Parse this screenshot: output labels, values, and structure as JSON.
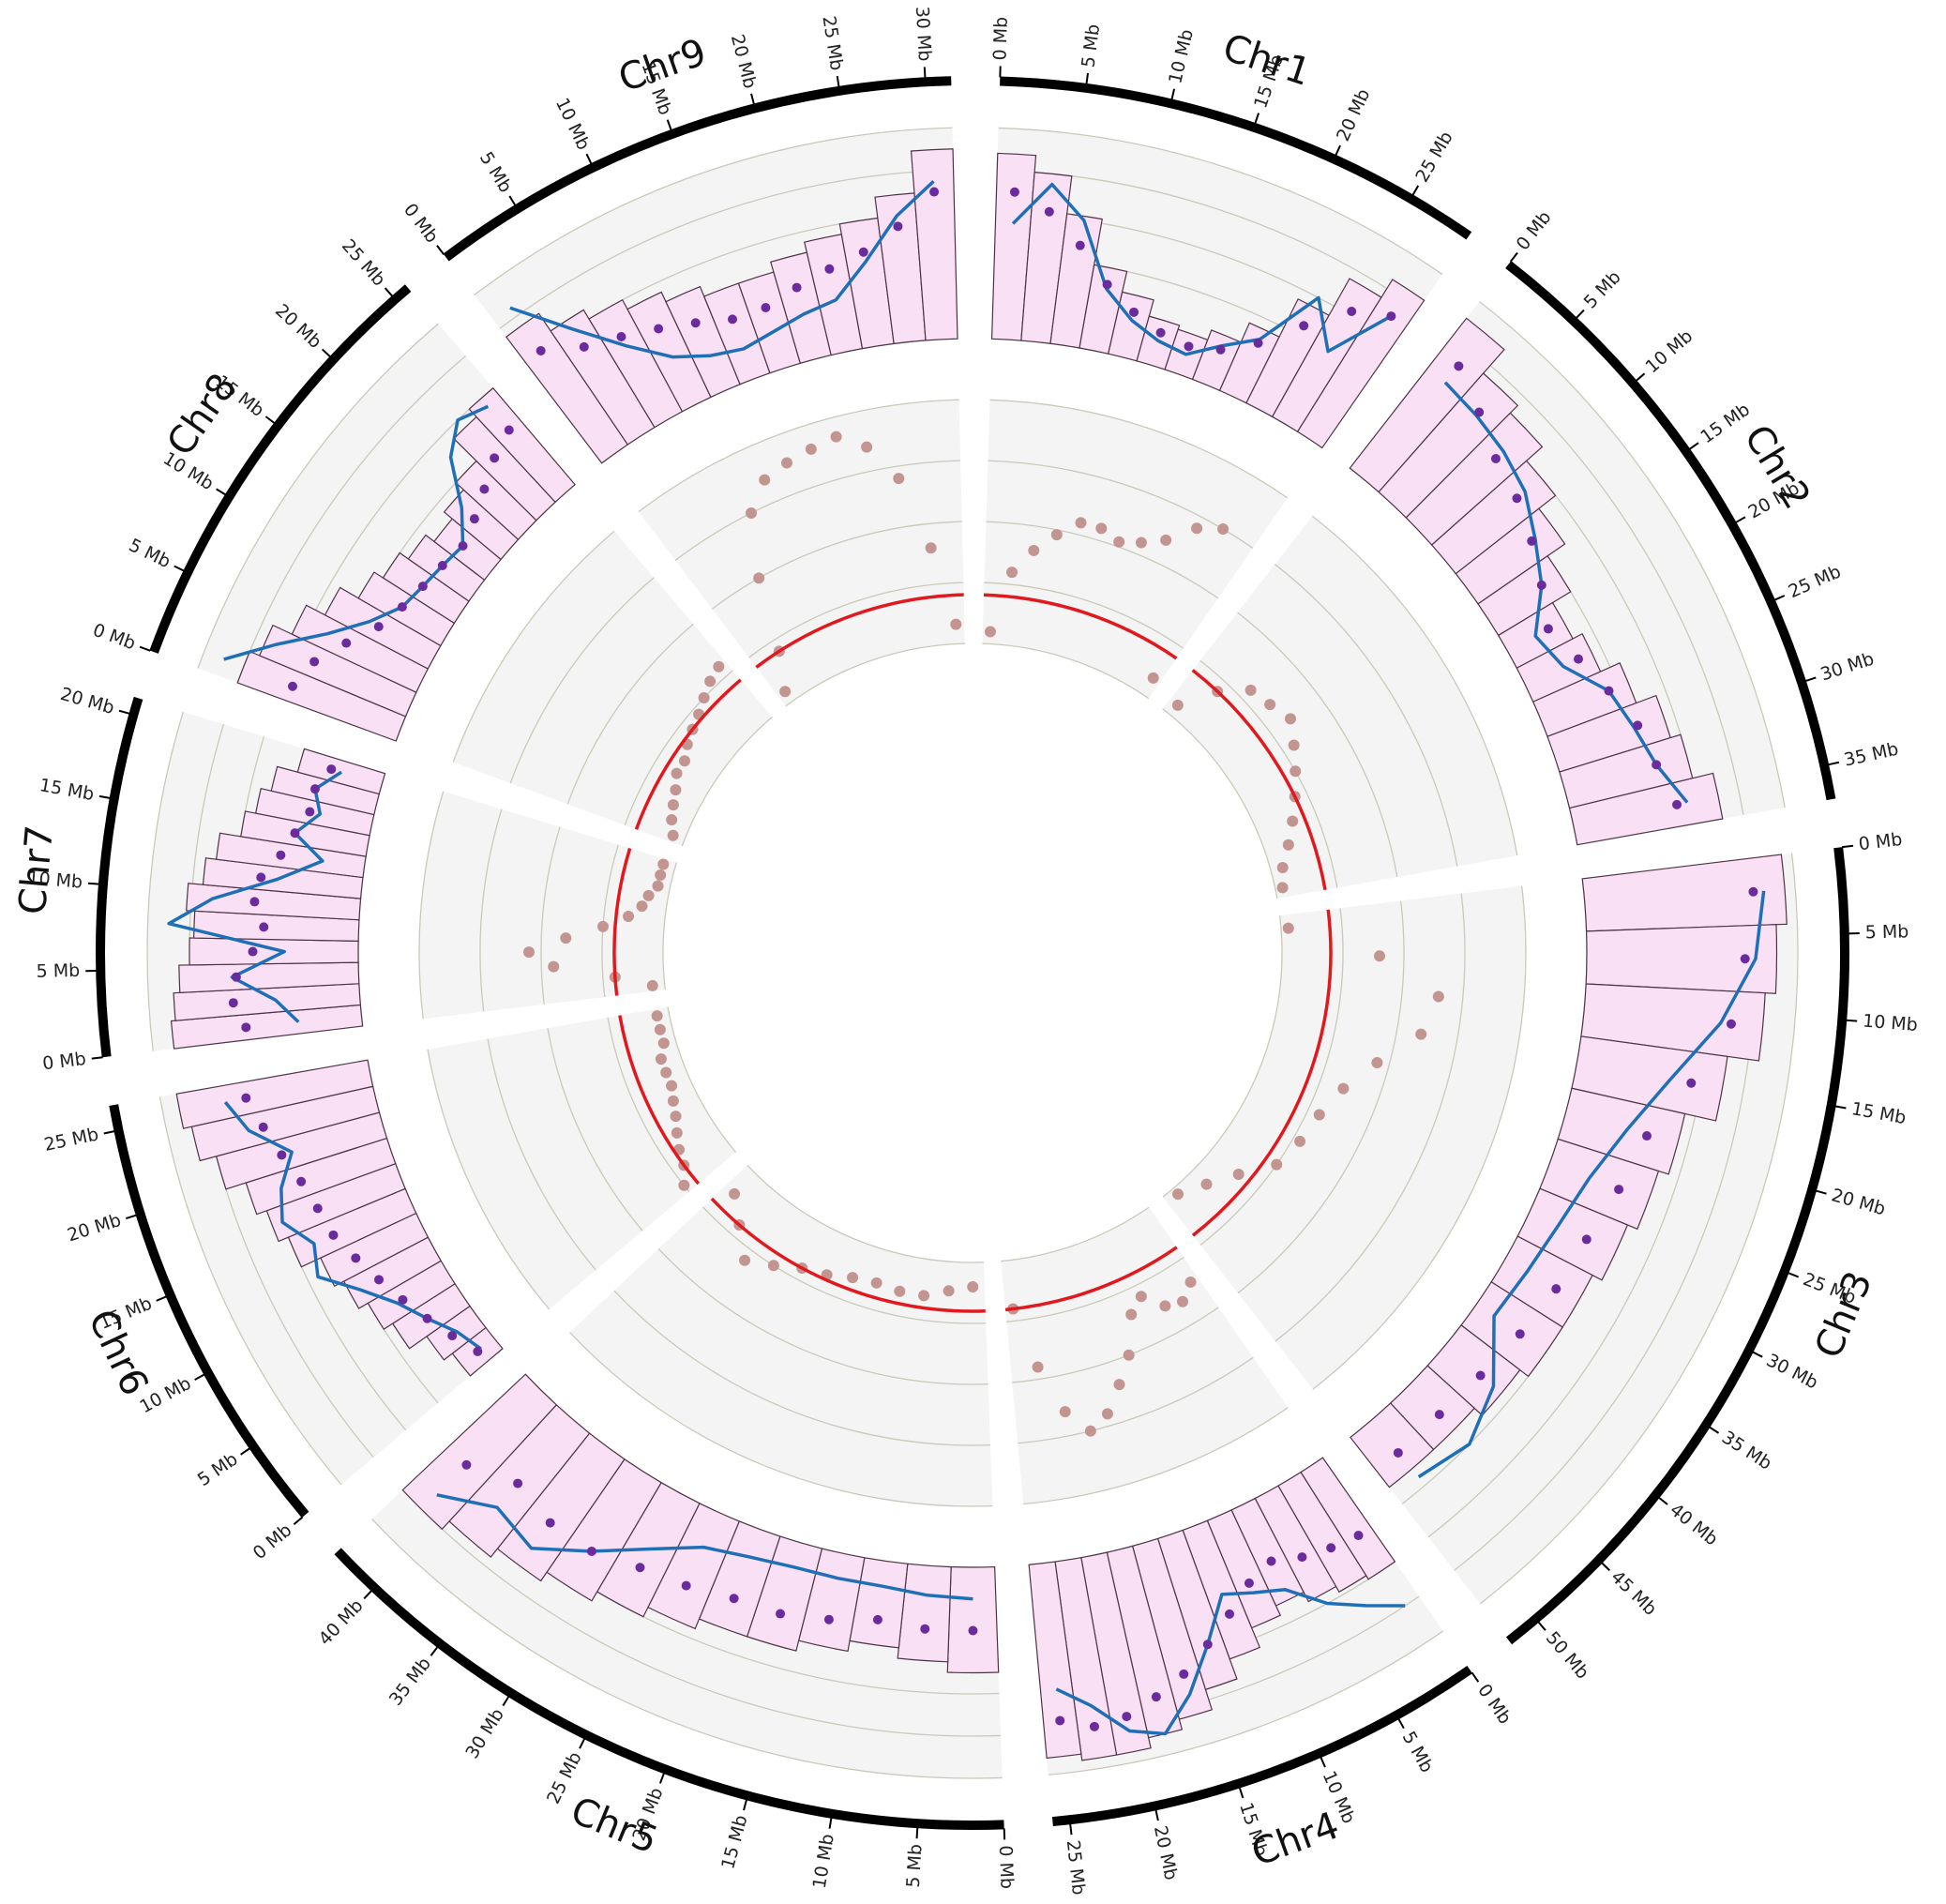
{
  "chart_data": {
    "type": "circos",
    "outer_track": {
      "rlim": [
        0,
        100
      ],
      "rticks": [
        0,
        20,
        40,
        60,
        80,
        100
      ],
      "background": "#f4f4f4",
      "grid_color": "#c9c9bb",
      "hist_color": "#f9e0f5",
      "hist_edge": "#4d3345",
      "dot_color": "#6a2b9c",
      "line_color": "#1f6fb6"
    },
    "inner_track": {
      "rlim": [
        0,
        100
      ],
      "rticks": [
        0,
        25,
        50,
        75,
        100
      ],
      "background": "#f4f4f4",
      "grid_color": "#c9c9bb",
      "scatter_color": "#c29590",
      "line_color": "#e0191e",
      "line_value": 20
    },
    "chromosomes": [
      {
        "name": "Chr1",
        "length": 29,
        "ticks": [
          {
            "value": 0,
            "label": "0 Mb"
          },
          {
            "value": 5,
            "label": "5 Mb"
          },
          {
            "value": 10,
            "label": "10 Mb"
          },
          {
            "value": 15,
            "label": "15 Mb"
          },
          {
            "value": 20,
            "label": "20 Mb"
          },
          {
            "value": 25,
            "label": "25 Mb"
          }
        ],
        "hist": [
          88,
          80,
          62,
          40,
          30,
          22,
          20,
          25,
          35,
          55,
          75,
          85
        ],
        "dots": [
          70,
          62,
          48,
          32,
          22,
          16,
          14,
          18,
          28,
          45,
          62,
          70
        ],
        "line": [
          55,
          75,
          60,
          30,
          18,
          12,
          10,
          20,
          30,
          60,
          40,
          70
        ],
        "scatter": [
          5,
          30,
          40,
          48,
          55,
          55,
          52,
          55,
          60,
          70,
          75,
          8
        ]
      },
      {
        "name": "Chr2",
        "length": 37,
        "ticks": [
          {
            "value": 0,
            "label": "0 Mb"
          },
          {
            "value": 5,
            "label": "5 Mb"
          },
          {
            "value": 10,
            "label": "10 Mb"
          },
          {
            "value": 15,
            "label": "15 Mb"
          },
          {
            "value": 20,
            "label": "20 Mb"
          },
          {
            "value": 25,
            "label": "25 Mb"
          },
          {
            "value": 30,
            "label": "30 Mb"
          },
          {
            "value": 35,
            "label": "35 Mb"
          }
        ],
        "hist": [
          90,
          75,
          70,
          60,
          50,
          40,
          30,
          35,
          45,
          55,
          60,
          70
        ],
        "dots": [
          70,
          60,
          50,
          45,
          38,
          30,
          22,
          28,
          35,
          42,
          45,
          50
        ],
        "line": [
          60,
          58,
          55,
          50,
          40,
          30,
          15,
          20,
          35,
          40,
          45,
          55
        ],
        "scatter": [
          5,
          20,
          30,
          32,
          35,
          30,
          25,
          20,
          15,
          10,
          5,
          3
        ]
      },
      {
        "name": "Chr3",
        "length": 52,
        "ticks": [
          {
            "value": 0,
            "label": "0 Mb"
          },
          {
            "value": 5,
            "label": "5 Mb"
          },
          {
            "value": 10,
            "label": "10 Mb"
          },
          {
            "value": 15,
            "label": "15 Mb"
          },
          {
            "value": 20,
            "label": "20 Mb"
          },
          {
            "value": 25,
            "label": "25 Mb"
          },
          {
            "value": 30,
            "label": "30 Mb"
          },
          {
            "value": 35,
            "label": "35 Mb"
          },
          {
            "value": 40,
            "label": "40 Mb"
          },
          {
            "value": 45,
            "label": "45 Mb"
          },
          {
            "value": 50,
            "label": "50 Mb"
          }
        ],
        "hist": [
          95,
          90,
          85,
          70,
          55,
          50,
          45,
          40,
          40,
          35,
          30,
          30
        ],
        "dots": [
          80,
          75,
          70,
          55,
          40,
          35,
          30,
          28,
          25,
          22,
          20,
          20
        ],
        "line": [
          85,
          80,
          65,
          45,
          30,
          20,
          15,
          12,
          10,
          30,
          40,
          35
        ],
        "scatter": [
          3,
          40,
          65,
          60,
          45,
          35,
          30,
          28,
          25,
          15,
          8,
          3
        ]
      },
      {
        "name": "Chr4",
        "length": 26,
        "ticks": [
          {
            "value": 0,
            "label": "0 Mb"
          },
          {
            "value": 5,
            "label": "5 Mb"
          },
          {
            "value": 10,
            "label": "10 Mb"
          },
          {
            "value": 15,
            "label": "15 Mb"
          },
          {
            "value": 20,
            "label": "20 Mb"
          },
          {
            "value": 25,
            "label": "25 Mb"
          }
        ],
        "hist": [
          60,
          58,
          55,
          50,
          55,
          65,
          75,
          85,
          90,
          95,
          95,
          92
        ],
        "dots": [
          40,
          38,
          35,
          30,
          35,
          45,
          55,
          65,
          72,
          78,
          80,
          75
        ],
        "line": [
          80,
          70,
          60,
          45,
          40,
          35,
          55,
          75,
          90,
          85,
          70,
          60
        ],
        "scatter": [
          35,
          40,
          38,
          30,
          35,
          50,
          60,
          70,
          75,
          65,
          45,
          20
        ]
      },
      {
        "name": "Chr5",
        "length": 43,
        "ticks": [
          {
            "value": 0,
            "label": "0 Mb"
          },
          {
            "value": 5,
            "label": "5 Mb"
          },
          {
            "value": 10,
            "label": "10 Mb"
          },
          {
            "value": 15,
            "label": "15 Mb"
          },
          {
            "value": 20,
            "label": "20 Mb"
          },
          {
            "value": 25,
            "label": "25 Mb"
          },
          {
            "value": 30,
            "label": "30 Mb"
          },
          {
            "value": 35,
            "label": "35 Mb"
          },
          {
            "value": 40,
            "label": "40 Mb"
          }
        ],
        "hist": [
          50,
          45,
          40,
          45,
          50,
          50,
          55,
          60,
          65,
          70,
          75,
          80
        ],
        "dots": [
          30,
          30,
          28,
          32,
          35,
          35,
          38,
          40,
          45,
          45,
          40,
          50
        ],
        "line": [
          15,
          14,
          12,
          12,
          12,
          14,
          18,
          30,
          45,
          60,
          55,
          70
        ],
        "scatter": [
          10,
          12,
          15,
          15,
          14,
          15,
          18,
          20,
          25,
          30,
          20,
          12
        ]
      },
      {
        "name": "Chr6",
        "length": 26.5,
        "ticks": [
          {
            "value": 0,
            "label": "0 Mb"
          },
          {
            "value": 5,
            "label": "5 Mb"
          },
          {
            "value": 10,
            "label": "10 Mb"
          },
          {
            "value": 15,
            "label": "15 Mb"
          },
          {
            "value": 20,
            "label": "20 Mb"
          },
          {
            "value": 25,
            "label": "25 Mb"
          }
        ],
        "hist": [
          20,
          25,
          35,
          40,
          45,
          50,
          60,
          65,
          70,
          80,
          88,
          92
        ],
        "dots": [
          10,
          15,
          20,
          25,
          30,
          35,
          40,
          42,
          45,
          50,
          55,
          60
        ],
        "line": [
          8,
          12,
          20,
          28,
          40,
          55,
          50,
          60,
          55,
          45,
          62,
          70
        ],
        "scatter": [
          25,
          20,
          18,
          15,
          12,
          10,
          8,
          8,
          8,
          5,
          5,
          5
        ]
      },
      {
        "name": "Chr7",
        "length": 21,
        "ticks": [
          {
            "value": 0,
            "label": "0 Mb"
          },
          {
            "value": 5,
            "label": "5 Mb"
          },
          {
            "value": 10,
            "label": "10 Mb"
          },
          {
            "value": 15,
            "label": "15 Mb"
          },
          {
            "value": 20,
            "label": "20 Mb"
          }
        ],
        "hist": [
          90,
          88,
          85,
          80,
          78,
          82,
          75,
          70,
          60,
          55,
          50,
          40
        ],
        "dots": [
          55,
          60,
          58,
          50,
          45,
          50,
          48,
          40,
          35,
          30,
          30,
          25
        ],
        "line": [
          30,
          40,
          60,
          35,
          90,
          70,
          40,
          20,
          35,
          25,
          30,
          20
        ],
        "scatter": [
          5,
          20,
          45,
          55,
          40,
          25,
          15,
          10,
          8,
          5,
          5,
          5
        ]
      },
      {
        "name": "Chr8",
        "length": 26,
        "ticks": [
          {
            "value": 0,
            "label": "0 Mb"
          },
          {
            "value": 5,
            "label": "5 Mb"
          },
          {
            "value": 10,
            "label": "10 Mb"
          },
          {
            "value": 15,
            "label": "15 Mb"
          },
          {
            "value": 20,
            "label": "20 Mb"
          },
          {
            "value": 25,
            "label": "25 Mb"
          }
        ],
        "hist": [
          80,
          75,
          65,
          55,
          45,
          40,
          35,
          30,
          35,
          40,
          55,
          60
        ],
        "dots": [
          55,
          50,
          40,
          30,
          25,
          22,
          20,
          18,
          22,
          28,
          35,
          40
        ],
        "line": [
          90,
          70,
          50,
          35,
          25,
          22,
          20,
          18,
          30,
          50,
          60,
          55
        ],
        "scatter": [
          5,
          8,
          10,
          12,
          15,
          15,
          18,
          20,
          22,
          25,
          28,
          30
        ]
      },
      {
        "name": "Chr9",
        "length": 31.5,
        "ticks": [
          {
            "value": 0,
            "label": "0 Mb"
          },
          {
            "value": 5,
            "label": "5 Mb"
          },
          {
            "value": 10,
            "label": "10 Mb"
          },
          {
            "value": 15,
            "label": "15 Mb"
          },
          {
            "value": 20,
            "label": "20 Mb"
          },
          {
            "value": 25,
            "label": "25 Mb"
          },
          {
            "value": 30,
            "label": "30 Mb"
          }
        ],
        "hist": [
          75,
          65,
          60,
          55,
          50,
          45,
          45,
          50,
          55,
          60,
          70,
          90
        ],
        "dots": [
          60,
          50,
          45,
          40,
          35,
          30,
          30,
          35,
          40,
          45,
          55,
          70
        ],
        "line": [
          85,
          60,
          40,
          25,
          18,
          15,
          18,
          22,
          25,
          40,
          60,
          75
        ],
        "scatter": [
          5,
          20,
          50,
          75,
          85,
          88,
          90,
          92,
          85,
          70,
          40,
          8
        ]
      }
    ]
  }
}
